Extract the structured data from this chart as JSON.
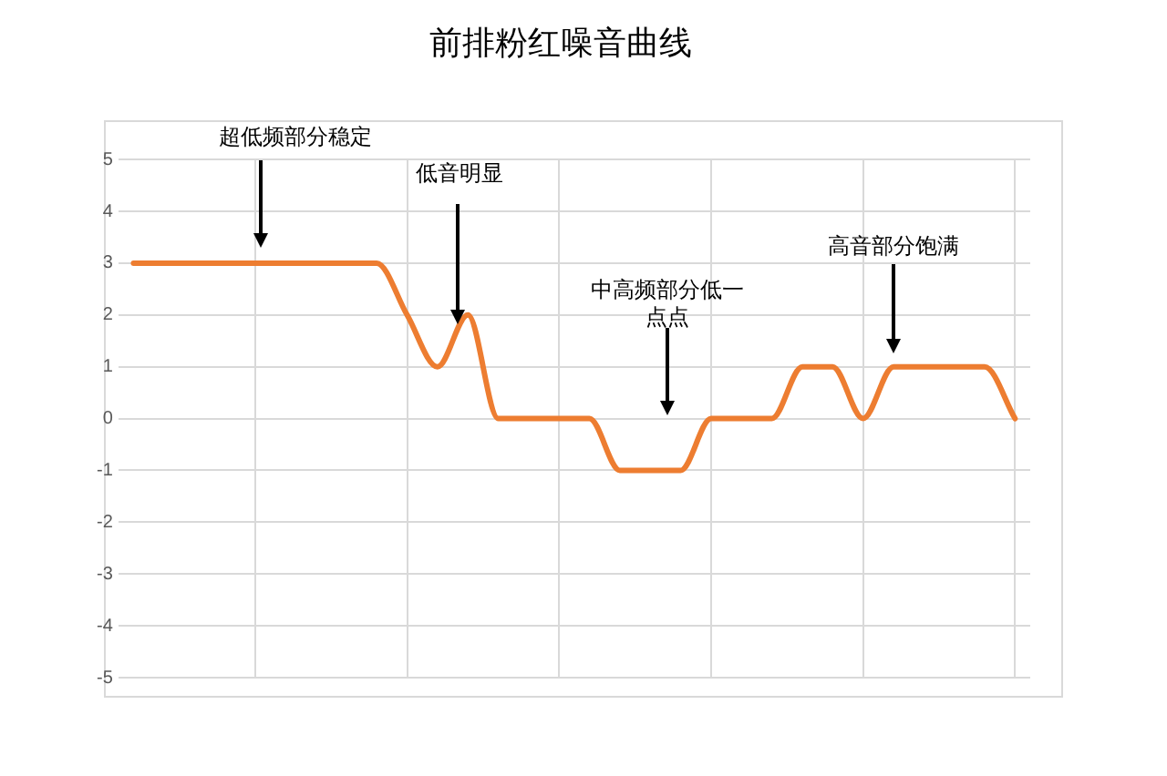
{
  "chart_data": {
    "type": "line",
    "title": "前排粉红噪音曲线",
    "categories": [
      null,
      null,
      null,
      null,
      null,
      null,
      null,
      null,
      null,
      null,
      null,
      null,
      null,
      null,
      null,
      null,
      null,
      null,
      null,
      null,
      null,
      null,
      null,
      null,
      null,
      null,
      null,
      null,
      null,
      null
    ],
    "series": [
      {
        "color": "#ed7d31",
        "values": [
          3,
          3,
          3,
          3,
          3,
          3,
          3,
          3,
          3,
          2,
          1,
          2,
          0,
          0,
          0,
          0,
          -1,
          -1,
          -1,
          0,
          0,
          0,
          1,
          1,
          0,
          1,
          1,
          1,
          1,
          0
        ]
      }
    ],
    "ylim": [
      -5,
      5
    ],
    "yticks": [
      -5,
      -4,
      -3,
      -2,
      -1,
      0,
      1,
      2,
      3,
      4,
      5
    ],
    "grid": true,
    "legend": false,
    "tick_labels": "y",
    "marker": "none",
    "line_style": "solid",
    "annotations": [
      "超低频部分稳定",
      "低音明显",
      "中高频部分低一点点",
      "高音部分饱满"
    ]
  }
}
